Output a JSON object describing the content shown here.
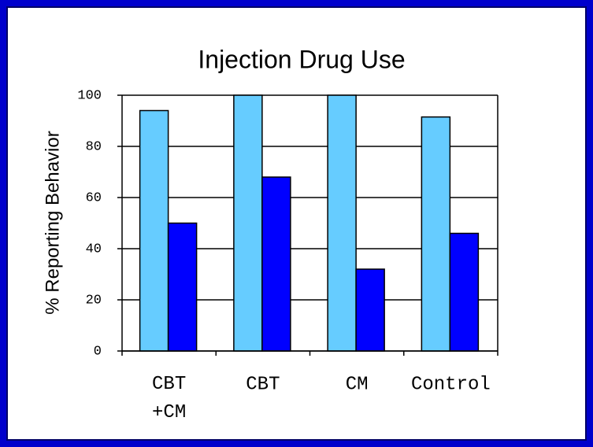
{
  "chart_data": {
    "type": "bar",
    "title": "Injection Drug Use",
    "ylabel": "% Reporting Behavior",
    "categories": [
      "CBT\n+CM",
      "CBT",
      "CM",
      "Control"
    ],
    "series": [
      {
        "color": "#66ccff",
        "values": [
          94,
          100,
          100,
          91.5
        ]
      },
      {
        "color": "#0000ff",
        "values": [
          50,
          68,
          32,
          46
        ]
      }
    ],
    "ylim": [
      0,
      100
    ],
    "yticks": [
      0,
      20,
      40,
      60,
      80,
      100
    ],
    "grid": true
  }
}
